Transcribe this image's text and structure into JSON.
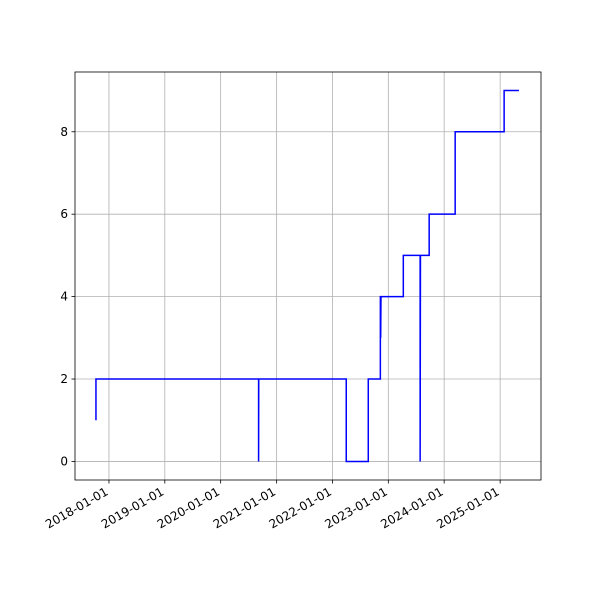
{
  "chart_data": {
    "type": "line",
    "x": [
      "2017-10-08",
      "2017-10-08",
      "2020-09-05",
      "2020-09-05",
      "2020-09-06",
      "2022-04-01",
      "2022-04-01",
      "2022-08-23",
      "2022-08-23",
      "2022-11-10",
      "2022-11-10",
      "2022-11-12",
      "2022-11-12",
      "2022-11-14",
      "2023-04-09",
      "2023-04-09",
      "2023-07-28",
      "2023-07-28",
      "2023-07-30",
      "2023-09-25",
      "2023-09-25",
      "2024-03-13",
      "2024-03-13",
      "2025-01-27",
      "2025-01-27",
      "2025-05-04"
    ],
    "values": [
      1,
      2,
      2,
      0,
      2,
      2,
      0,
      0,
      2,
      2,
      4,
      4,
      3,
      4,
      4,
      5,
      5,
      0,
      5,
      5,
      6,
      6,
      8,
      8,
      9,
      9
    ],
    "color": "#0000ff",
    "xlim": [
      "2017-05-24",
      "2025-09-25"
    ],
    "xticks": [
      "2018-01-01",
      "2019-01-01",
      "2020-01-01",
      "2021-01-01",
      "2022-01-01",
      "2023-01-01",
      "2024-01-01",
      "2025-01-01"
    ],
    "ylim": [
      -0.45,
      9.45
    ],
    "yticks": [
      0,
      2,
      4,
      6,
      8
    ],
    "grid": true
  }
}
